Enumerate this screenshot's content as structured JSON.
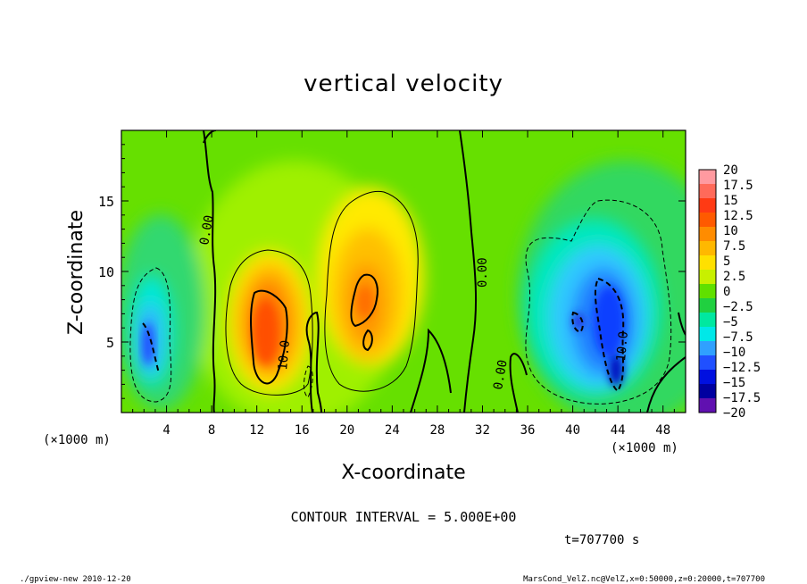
{
  "chart_data": {
    "type": "heatmap",
    "title": "vertical velocity",
    "xlabel": "X-coordinate",
    "ylabel": "Z-coordinate",
    "x_unit_left": "(×1000 m)",
    "x_unit_right": "(×1000 m)",
    "xlim": [
      0,
      50
    ],
    "ylim": [
      0,
      20
    ],
    "x_ticks": [
      "4",
      "8",
      "12",
      "16",
      "20",
      "24",
      "28",
      "32",
      "36",
      "40",
      "44",
      "48"
    ],
    "y_ticks": [
      "5",
      "10",
      "15"
    ],
    "colorbar": {
      "labels": [
        "20",
        "17.5",
        "15",
        "12.5",
        "10",
        "7.5",
        "5",
        "2.5",
        "0",
        "−2.5",
        "−5",
        "−7.5",
        "−10",
        "−12.5",
        "−15",
        "−17.5",
        "−20"
      ],
      "colors": [
        "#ff9aa0",
        "#ff6a5a",
        "#ff3a14",
        "#ff5a00",
        "#ff8c00",
        "#ffb800",
        "#ffe000",
        "#c8f000",
        "#60e000",
        "#20d040",
        "#00e8a0",
        "#00e8e8",
        "#30a0ff",
        "#2050ff",
        "#0010e0",
        "#0000a0",
        "#6010b0"
      ]
    },
    "contour_labels": [
      "0.00",
      "10.0",
      "0.00",
      "0.00",
      "10.0"
    ],
    "features": [
      {
        "kind": "updraft",
        "x": 13.0,
        "z": 5.5,
        "peak": 12.5
      },
      {
        "kind": "updraft",
        "x": 21.5,
        "z": 8.0,
        "peak": 10
      },
      {
        "kind": "downdraft",
        "x": 3.0,
        "z": 5.5,
        "peak": -10
      },
      {
        "kind": "downdraft",
        "x": 43.5,
        "z": 6.5,
        "peak": -15
      }
    ]
  },
  "annotations": {
    "contour_interval": "CONTOUR INTERVAL = 5.000E+00",
    "time": "t=707700 s",
    "footer_left": "./gpview-new  2010-12-20",
    "footer_right": "MarsCond_VelZ.nc@VelZ,x=0:50000,z=0:20000,t=707700"
  }
}
